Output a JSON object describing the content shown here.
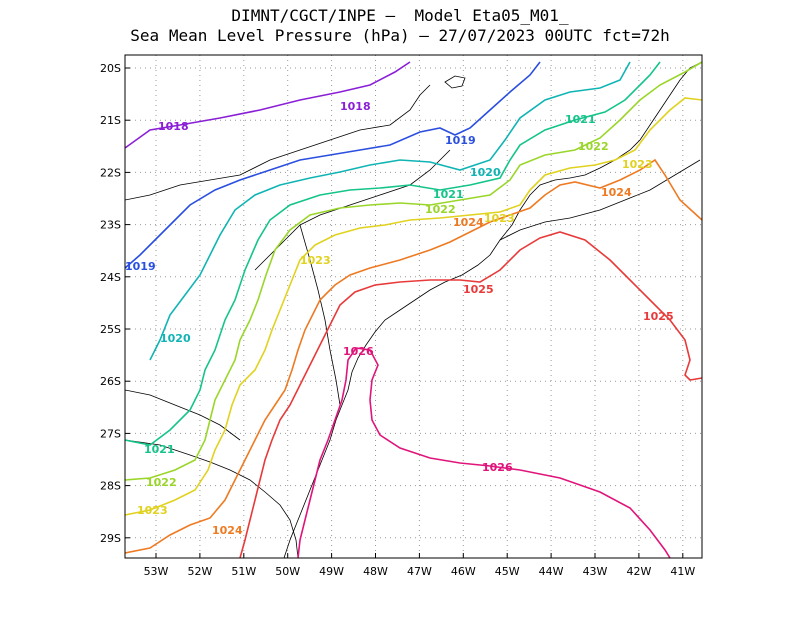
{
  "title_line1": "DIMNT/CGCT/INPE –  Model Eta05_M01_",
  "title_line2": "Sea Mean Level Pressure (hPa) – 27/07/2023 00UTC fct=72h",
  "y_axis": [
    "20S",
    "21S",
    "22S",
    "23S",
    "24S",
    "25S",
    "26S",
    "27S",
    "28S",
    "29S"
  ],
  "x_axis": [
    "53W",
    "52W",
    "51W",
    "50W",
    "49W",
    "48W",
    "47W",
    "46W",
    "45W",
    "44W",
    "43W",
    "42W",
    "41W"
  ],
  "contours": [
    {
      "level": "1018",
      "color": "#8a1fd6",
      "labels": [
        "1018",
        "1018"
      ]
    },
    {
      "level": "1019",
      "color": "#2a4ee0",
      "labels": [
        "1019",
        "1019"
      ]
    },
    {
      "level": "1020",
      "color": "#10b4b4",
      "labels": [
        "1020",
        "1020"
      ]
    },
    {
      "level": "1021",
      "color": "#14c48a",
      "labels": [
        "1021",
        "1021",
        "1021"
      ]
    },
    {
      "level": "1022",
      "color": "#9ad62a",
      "labels": [
        "1022",
        "1022",
        "1022"
      ]
    },
    {
      "level": "1023",
      "color": "#e0d21e",
      "labels": [
        "1023",
        "1023",
        "1023",
        "1023"
      ]
    },
    {
      "level": "1024",
      "color": "#ee7a22",
      "labels": [
        "1024",
        "1024",
        "1024"
      ]
    },
    {
      "level": "1025",
      "color": "#e83a3a",
      "labels": [
        "1025",
        "1025"
      ]
    },
    {
      "level": "1026",
      "color": "#e0147a",
      "labels": [
        "1026",
        "1026"
      ]
    }
  ]
}
